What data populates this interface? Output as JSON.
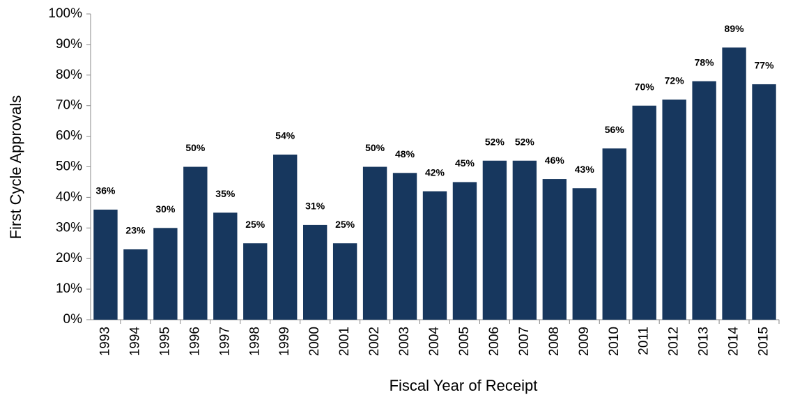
{
  "chart_data": {
    "type": "bar",
    "x_label": "Fiscal Year of Receipt",
    "y_label": "First Cycle Approvals",
    "categories": [
      "1993",
      "1994",
      "1995",
      "1996",
      "1997",
      "1998",
      "1999",
      "2000",
      "2001",
      "2002",
      "2003",
      "2004",
      "2005",
      "2006",
      "2007",
      "2008",
      "2009",
      "2010",
      "2011",
      "2012",
      "2013",
      "2014",
      "2015"
    ],
    "values": [
      36,
      23,
      30,
      50,
      35,
      25,
      54,
      31,
      25,
      50,
      48,
      42,
      45,
      52,
      52,
      46,
      43,
      56,
      70,
      72,
      78,
      89,
      77
    ],
    "value_labels": [
      "36%",
      "23%",
      "30%",
      "50%",
      "35%",
      "25%",
      "54%",
      "31%",
      "25%",
      "50%",
      "48%",
      "42%",
      "45%",
      "52%",
      "52%",
      "46%",
      "43%",
      "56%",
      "70%",
      "72%",
      "78%",
      "89%",
      "77%"
    ],
    "color": "#17375e",
    "ylim": [
      0,
      100
    ],
    "yticks": [
      {
        "value": 0,
        "label": "0%"
      },
      {
        "value": 10,
        "label": "10%"
      },
      {
        "value": 20,
        "label": "20%"
      },
      {
        "value": 30,
        "label": "30%"
      },
      {
        "value": 40,
        "label": "40%"
      },
      {
        "value": 50,
        "label": "50%"
      },
      {
        "value": 60,
        "label": "60%"
      },
      {
        "value": 70,
        "label": "70%"
      },
      {
        "value": 80,
        "label": "80%"
      },
      {
        "value": 90,
        "label": "90%"
      },
      {
        "value": 100,
        "label": "100%"
      }
    ],
    "grid": false
  }
}
